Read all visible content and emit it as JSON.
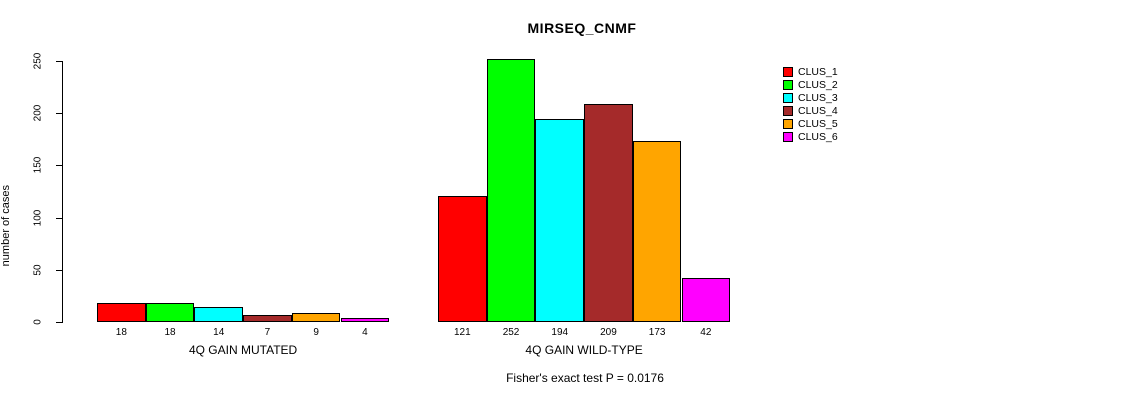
{
  "chart_data": {
    "type": "bar",
    "title": "MIRSEQ_CNMF",
    "ylabel": "number of cases",
    "ylim": [
      0,
      250
    ],
    "yticks": [
      0,
      50,
      100,
      150,
      200,
      250
    ],
    "grid": false,
    "legend_position": "right",
    "categories": [
      "4Q GAIN MUTATED",
      "4Q GAIN WILD-TYPE"
    ],
    "series": [
      {
        "name": "CLUS_1",
        "color": "#FF0000",
        "values": [
          18,
          121
        ]
      },
      {
        "name": "CLUS_2",
        "color": "#00FF00",
        "values": [
          18,
          252
        ]
      },
      {
        "name": "CLUS_3",
        "color": "#00FFFF",
        "values": [
          14,
          194
        ]
      },
      {
        "name": "CLUS_4",
        "color": "#A52A2A",
        "values": [
          7,
          209
        ]
      },
      {
        "name": "CLUS_5",
        "color": "#FFA500",
        "values": [
          9,
          173
        ]
      },
      {
        "name": "CLUS_6",
        "color": "#FF00FF",
        "values": [
          4,
          42
        ]
      }
    ],
    "bar_value_labels": {
      "4Q GAIN MUTATED": [
        18,
        18,
        14,
        7,
        9,
        4
      ],
      "4Q GAIN WILD-TYPE": [
        121,
        252,
        194,
        209,
        173,
        42
      ]
    },
    "annotation": "Fisher's exact test P = 0.0176"
  }
}
